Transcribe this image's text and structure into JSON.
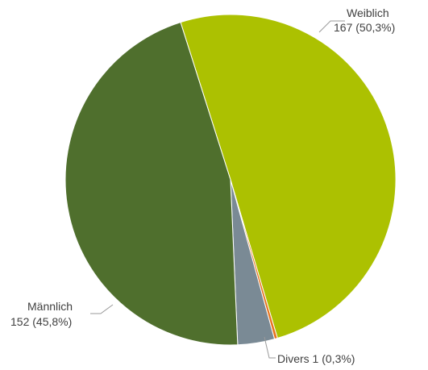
{
  "chart_data": {
    "type": "pie",
    "slices": [
      {
        "name": "Weiblich",
        "count": "167",
        "percent_label": "(50,3%)",
        "value": 50.3,
        "color": "#acc101"
      },
      {
        "name": "Divers",
        "count": "1",
        "percent_label": "(0,3%)",
        "value": 0.3,
        "color": "#e8731e"
      },
      {
        "name": "",
        "count": "",
        "percent_label": "",
        "value": 3.6,
        "color": "#7a8a95"
      },
      {
        "name": "Männlich",
        "count": "152",
        "percent_label": "(45,8%)",
        "value": 45.8,
        "color": "#4f6f2d"
      }
    ],
    "labels": {
      "weiblich_name": "Weiblich",
      "weiblich_value": "167 (50,3%)",
      "divers_text": "Divers 1 (0,3%)",
      "maennlich_name": "Männlich",
      "maennlich_value": "152 (45,8%)"
    },
    "legend": "none"
  }
}
